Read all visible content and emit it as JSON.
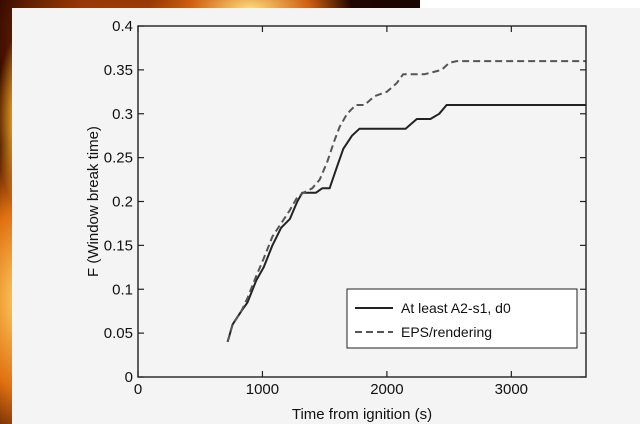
{
  "chart_data": {
    "type": "line",
    "title": "",
    "xlabel": "Time from ignition (s)",
    "ylabel": "F (Window break time)",
    "xlim": [
      0,
      3600
    ],
    "ylim": [
      0,
      0.4
    ],
    "xticks": [
      0,
      1000,
      2000,
      3000
    ],
    "yticks": [
      0,
      0.05,
      0.1,
      0.15,
      0.2,
      0.25,
      0.3,
      0.35,
      0.4
    ],
    "xtick_labels": [
      "0",
      "1000",
      "2000",
      "3000"
    ],
    "ytick_labels": [
      "0",
      "0.05",
      "0.1",
      "0.15",
      "0.2",
      "0.25",
      "0.3",
      "0.35",
      "0.4"
    ],
    "grid": false,
    "legend_position": "bottom-right",
    "series": [
      {
        "name": "At least A2-s1, d0",
        "style": "solid",
        "color": "#222222",
        "x": [
          720,
          760,
          830,
          880,
          950,
          1010,
          1080,
          1150,
          1220,
          1280,
          1320,
          1360,
          1430,
          1480,
          1540,
          1600,
          1650,
          1720,
          1780,
          1820,
          2000,
          2150,
          2240,
          2350,
          2420,
          2480,
          2550,
          3600
        ],
        "y": [
          0.04,
          0.06,
          0.075,
          0.085,
          0.11,
          0.125,
          0.15,
          0.17,
          0.18,
          0.2,
          0.21,
          0.21,
          0.21,
          0.215,
          0.215,
          0.24,
          0.26,
          0.275,
          0.283,
          0.283,
          0.283,
          0.283,
          0.294,
          0.294,
          0.3,
          0.31,
          0.31,
          0.31
        ]
      },
      {
        "name": "EPS/rendering",
        "style": "dashed",
        "color": "#555555",
        "x": [
          720,
          760,
          830,
          880,
          950,
          1010,
          1080,
          1150,
          1220,
          1280,
          1330,
          1400,
          1460,
          1520,
          1580,
          1620,
          1680,
          1750,
          1820,
          1900,
          2000,
          2080,
          2130,
          2300,
          2440,
          2500,
          2560,
          3600
        ],
        "y": [
          0.04,
          0.06,
          0.075,
          0.09,
          0.115,
          0.135,
          0.16,
          0.175,
          0.19,
          0.205,
          0.21,
          0.215,
          0.225,
          0.245,
          0.27,
          0.285,
          0.3,
          0.31,
          0.31,
          0.32,
          0.325,
          0.335,
          0.345,
          0.345,
          0.35,
          0.358,
          0.36,
          0.36
        ]
      }
    ]
  }
}
